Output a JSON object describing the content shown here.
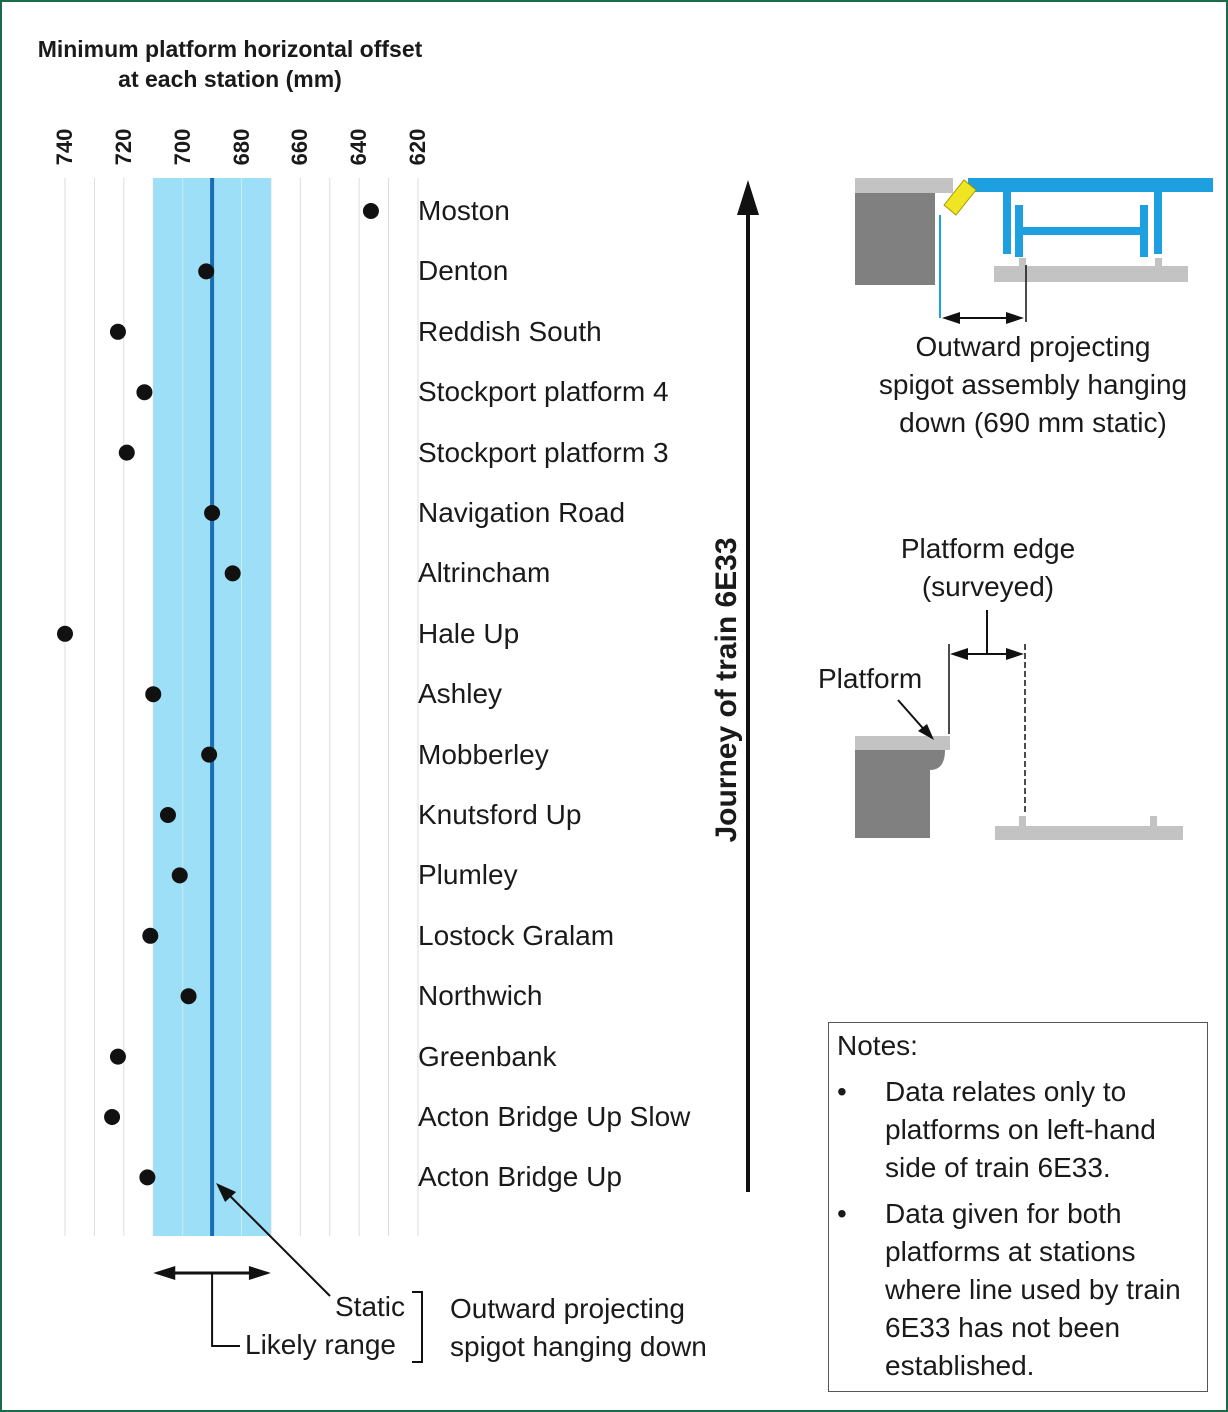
{
  "chart_data": {
    "type": "scatter",
    "title": "Minimum platform horizontal offset at each station (mm)",
    "x_ticks": [
      740,
      720,
      700,
      680,
      660,
      640,
      620
    ],
    "xlim": [
      740,
      620
    ],
    "x_direction": "reversed",
    "y_label": "Journey of train 6E33",
    "grid": true,
    "categories": [
      "Moston",
      "Denton",
      "Reddish South",
      "Stockport platform 4",
      "Stockport platform 3",
      "Navigation Road",
      "Altrincham",
      "Hale Up",
      "Ashley",
      "Mobberley",
      "Knutsford Up",
      "Plumley",
      "Lostock Gralam",
      "Northwich",
      "Greenbank",
      "Acton Bridge Up Slow",
      "Acton Bridge Up"
    ],
    "values": [
      636,
      692,
      722,
      713,
      719,
      690,
      683,
      740,
      710,
      691,
      705,
      701,
      711,
      698,
      722,
      724,
      712
    ],
    "static_value": 690,
    "likely_range": [
      710,
      670
    ],
    "colors": {
      "band": "#9ddff6",
      "line": "#1a6cb5",
      "point": "#111111"
    }
  },
  "legend": {
    "static": "Static",
    "likely_range": "Likely range",
    "description_line1": "Outward projecting",
    "description_line2": "spigot hanging down"
  },
  "diagram_top": {
    "caption_line1": "Outward projecting",
    "caption_line2": "spigot assembly hanging",
    "caption_line3": "down (690 mm static)"
  },
  "diagram_bottom": {
    "edge_label_line1": "Platform edge",
    "edge_label_line2": "(surveyed)",
    "platform_label": "Platform"
  },
  "notes": {
    "title": "Notes:",
    "items": [
      "Data relates only to platforms on left-hand side of train 6E33.",
      "Data given for both platforms at stations where line used by train 6E33 has not been established."
    ]
  }
}
